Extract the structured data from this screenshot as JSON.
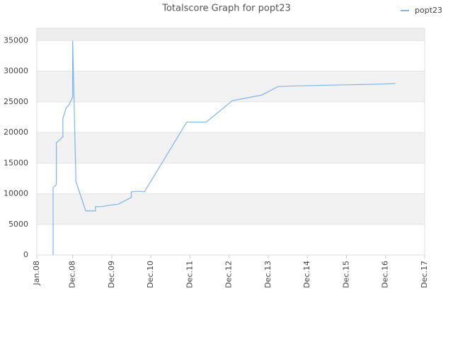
{
  "chart_data": {
    "type": "line",
    "title": "Totalscore Graph for popt23",
    "x": [
      "2008-06",
      "2008-06",
      "2008-07",
      "2008-07",
      "2008-07",
      "2008-07",
      "2008-09",
      "2008-09",
      "2008-10",
      "2008-11",
      "2008-12",
      "2008-12",
      "2009-01",
      "2009-04",
      "2009-07",
      "2009-07",
      "2009-09",
      "2009-11",
      "2010-02",
      "2010-06",
      "2010-06",
      "2010-08",
      "2010-10",
      "2011-11",
      "2012-05",
      "2013-01",
      "2013-10",
      "2014-03",
      "2014-08",
      "2015-05",
      "2016-02",
      "2016-11",
      "2017-03"
    ],
    "series": [
      {
        "name": "popt23",
        "color": "#7cb5ec",
        "values": [
          0,
          11000,
          11500,
          14500,
          17000,
          18300,
          19300,
          22300,
          24000,
          24600,
          25800,
          35000,
          12000,
          7200,
          7200,
          7900,
          7900,
          8100,
          8300,
          9400,
          10300,
          10400,
          10300,
          21700,
          21700,
          25200,
          26100,
          27500,
          27600,
          27700,
          27800,
          27900,
          28000
        ]
      }
    ],
    "xlim": [
      "2008-01",
      "2017-12"
    ],
    "xticks": [
      {
        "value": "2008-01",
        "label": "Jan.08"
      },
      {
        "value": "2008-12",
        "label": "Dec.08"
      },
      {
        "value": "2009-12",
        "label": "Dec.09"
      },
      {
        "value": "2010-12",
        "label": "Dec.10"
      },
      {
        "value": "2011-12",
        "label": "Dec.11"
      },
      {
        "value": "2012-12",
        "label": "Dec.12"
      },
      {
        "value": "2013-12",
        "label": "Dec.13"
      },
      {
        "value": "2014-12",
        "label": "Dec.14"
      },
      {
        "value": "2015-12",
        "label": "Dec.15"
      },
      {
        "value": "2016-12",
        "label": "Dec.16"
      },
      {
        "value": "2017-12",
        "label": "Dec.17"
      }
    ],
    "ylim": [
      0,
      37000
    ],
    "yticks": [
      0,
      5000,
      10000,
      15000,
      20000,
      25000,
      30000,
      35000
    ],
    "grid": true,
    "legend": "top-right"
  }
}
